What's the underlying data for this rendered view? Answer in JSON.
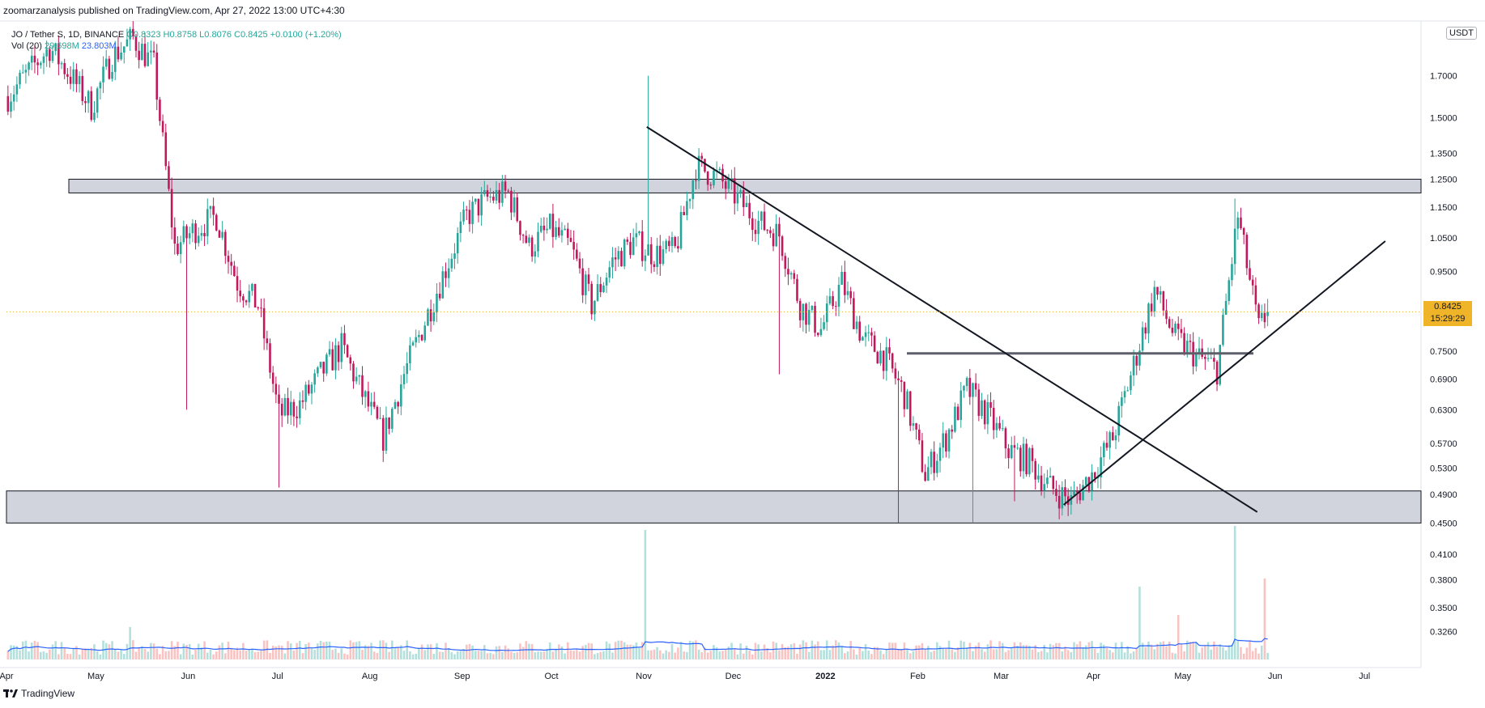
{
  "header": {
    "published_text": "zoomarzanalysis published on TradingView.com, Apr 27, 2022 13:00 UTC+4:30"
  },
  "legend": {
    "symbol_text": "JO / Tether S, 1D, BINANCE",
    "open": "O0.8323",
    "high": "H0.8758",
    "low": "L0.8076",
    "close": "C0.8425",
    "change": "+0.0100 (+1.20%)",
    "vol_label": "Vol (20)",
    "vol_value": "29.698M",
    "vol_ma": "23.803M"
  },
  "footer": {
    "brand": "TradingView",
    "logo_text": "17"
  },
  "price_scale": {
    "currency": "USDT",
    "last_price": "0.8425",
    "countdown": "15:29:29"
  },
  "chart_data": {
    "type": "candlestick",
    "y_scale": "log",
    "ylim": [
      0.3,
      2.0
    ],
    "y_ticks": [
      1.7,
      1.5,
      1.35,
      1.25,
      1.15,
      1.05,
      0.95,
      0.8425,
      0.75,
      0.69,
      0.63,
      0.57,
      0.53,
      0.49,
      0.45,
      0.41,
      0.38,
      0.35,
      0.326
    ],
    "y_tick_labels": [
      "1.7000",
      "1.5000",
      "1.3500",
      "1.2500",
      "1.1500",
      "1.0500",
      "0.9500",
      "",
      "0.7500",
      "0.6900",
      "0.6300",
      "0.5700",
      "0.5300",
      "0.4900",
      "0.4500",
      "0.4100",
      "0.3800",
      "0.3500",
      "0.3260"
    ],
    "x_ticks": [
      "Apr",
      "May",
      "Jun",
      "Jul",
      "Aug",
      "Sep",
      "Oct",
      "Nov",
      "Dec",
      "2022",
      "Feb",
      "Mar",
      "Apr",
      "May",
      "Jun",
      "Jul"
    ],
    "x_tick_days": [
      0,
      30,
      61,
      91,
      122,
      153,
      183,
      214,
      244,
      275,
      306,
      334,
      365,
      395,
      426,
      456
    ],
    "x_range_days": [
      0,
      475
    ],
    "last_price": 0.8425,
    "series_colors": {
      "up": "#26a69a",
      "down": "#c2185b",
      "volume_ma": "#2962ff"
    },
    "candles_weekly_close": [
      [
        0,
        1.6
      ],
      [
        7,
        1.72
      ],
      [
        14,
        1.85
      ],
      [
        21,
        1.7
      ],
      [
        28,
        1.55
      ],
      [
        35,
        1.8
      ],
      [
        42,
        1.9
      ],
      [
        49,
        1.75
      ],
      [
        56,
        1.02
      ],
      [
        63,
        1.08
      ],
      [
        70,
        1.12
      ],
      [
        77,
        0.92
      ],
      [
        84,
        0.86
      ],
      [
        91,
        0.62
      ],
      [
        98,
        0.64
      ],
      [
        105,
        0.7
      ],
      [
        112,
        0.76
      ],
      [
        119,
        0.66
      ],
      [
        126,
        0.58
      ],
      [
        133,
        0.7
      ],
      [
        140,
        0.82
      ],
      [
        147,
        0.96
      ],
      [
        154,
        1.12
      ],
      [
        161,
        1.18
      ],
      [
        168,
        1.2
      ],
      [
        175,
        1.02
      ],
      [
        182,
        1.08
      ],
      [
        189,
        1.02
      ],
      [
        196,
        0.86
      ],
      [
        203,
        0.98
      ],
      [
        210,
        1.04
      ],
      [
        217,
        1.0
      ],
      [
        224,
        1.01
      ],
      [
        231,
        1.3
      ],
      [
        238,
        1.26
      ],
      [
        245,
        1.18
      ],
      [
        252,
        1.1
      ],
      [
        259,
        1.06
      ],
      [
        266,
        0.86
      ],
      [
        273,
        0.8
      ],
      [
        280,
        0.92
      ],
      [
        287,
        0.78
      ],
      [
        294,
        0.74
      ],
      [
        301,
        0.66
      ],
      [
        308,
        0.52
      ],
      [
        315,
        0.58
      ],
      [
        322,
        0.67
      ],
      [
        329,
        0.62
      ],
      [
        336,
        0.56
      ],
      [
        343,
        0.54
      ],
      [
        350,
        0.5
      ],
      [
        357,
        0.48
      ],
      [
        364,
        0.52
      ],
      [
        371,
        0.58
      ],
      [
        378,
        0.72
      ],
      [
        385,
        0.9
      ],
      [
        392,
        0.78
      ],
      [
        399,
        0.74
      ],
      [
        406,
        0.71
      ],
      [
        413,
        1.12
      ],
      [
        420,
        0.8
      ],
      [
        423,
        0.8425
      ]
    ],
    "annotations": {
      "resistance_zone": [
        1.2,
        1.25
      ],
      "support_zone": [
        0.45,
        0.495
      ],
      "horizontal_level": 0.745,
      "descending_trendline": [
        [
          215,
          1.46
        ],
        [
          420,
          0.465
        ]
      ],
      "ascending_trendline": [
        [
          355,
          0.475
        ],
        [
          463,
          1.04
        ]
      ]
    }
  }
}
